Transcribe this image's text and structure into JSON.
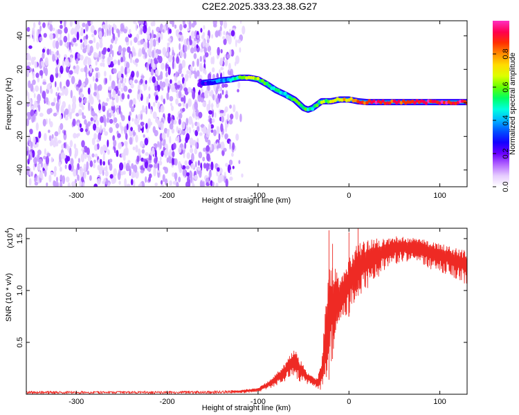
{
  "title": "C2E2.2025.333.23.38.G27",
  "colors": {
    "snr_line": "#ee2a24",
    "frame": "#000000",
    "scatter": "#7b2cf0",
    "colormap": [
      "#ffffff",
      "#e6ccff",
      "#b366ff",
      "#6a00ff",
      "#1400ff",
      "#0050ff",
      "#00b4ff",
      "#00ffe0",
      "#00ff64",
      "#64ff00",
      "#dcff00",
      "#ffdc00",
      "#ff8c00",
      "#ff3000",
      "#ff0050",
      "#ff30c0"
    ]
  },
  "chart_data": [
    {
      "type": "heatmap",
      "name": "spectrogram",
      "xlabel": "Height of straight line (km)",
      "ylabel": "Frequency (Hz)",
      "xlim": [
        -355,
        130
      ],
      "ylim": [
        -50,
        49
      ],
      "x_ticks": [
        -300,
        -200,
        -100,
        0,
        100
      ],
      "x_tick_labels": [
        "-300",
        "-200",
        "-100",
        "0",
        "100"
      ],
      "y_ticks": [
        -40,
        -20,
        0,
        20,
        40
      ],
      "y_tick_labels": [
        "-40",
        "-20",
        "0",
        "20",
        "40"
      ],
      "noise_region_x": [
        -355,
        -115
      ],
      "noise_fade_x": [
        -140,
        -115
      ],
      "signal_track": {
        "x": [
          -160,
          -150,
          -140,
          -130,
          -120,
          -110,
          -100,
          -90,
          -80,
          -70,
          -60,
          -50,
          -45,
          -40,
          -35,
          -30,
          -20,
          -10,
          0,
          10,
          20,
          40,
          60,
          80,
          100,
          130
        ],
        "freq": [
          12,
          12.5,
          13.5,
          14,
          15,
          15,
          14,
          11,
          7.5,
          5,
          2,
          -3,
          -4,
          -3,
          -1,
          1,
          1,
          2,
          2,
          1,
          0.5,
          0.5,
          0.5,
          0.5,
          0.5,
          0.5
        ],
        "amplitude": [
          0.2,
          0.3,
          0.35,
          0.45,
          0.6,
          0.65,
          0.6,
          0.55,
          0.5,
          0.45,
          0.55,
          0.6,
          0.5,
          0.5,
          0.55,
          0.6,
          0.65,
          0.7,
          0.75,
          0.85,
          0.9,
          0.9,
          0.9,
          0.92,
          0.92,
          0.92
        ]
      },
      "colorbar": {
        "label": "Normalized spectral amplitude",
        "range": [
          0,
          1
        ],
        "ticks": [
          0,
          0.2,
          0.4,
          0.6,
          0.8
        ],
        "tick_labels": [
          "0.0",
          "0.2",
          "0.4",
          "0.6",
          "0.8"
        ]
      }
    },
    {
      "type": "line",
      "name": "snr",
      "xlabel": "Height of straight line (km)",
      "ylabel": "SNR (10 * v/v)",
      "multiplier": "(x10",
      "multiplier_exp": "4",
      "multiplier_close": ")",
      "xlim": [
        -355,
        130
      ],
      "ylim": [
        0,
        1.6
      ],
      "x_ticks": [
        -300,
        -200,
        -100,
        0,
        100
      ],
      "x_tick_labels": [
        "-300",
        "-200",
        "-100",
        "0",
        "100"
      ],
      "y_ticks": [
        0.5,
        1.0,
        1.5
      ],
      "y_tick_labels": [
        "0.5",
        "1.0",
        "1.5"
      ],
      "envelope": {
        "x": [
          -355,
          -300,
          -250,
          -200,
          -150,
          -120,
          -100,
          -90,
          -80,
          -70,
          -60,
          -55,
          -50,
          -45,
          -40,
          -35,
          -30,
          -25,
          -20,
          -15,
          -10,
          -5,
          0,
          5,
          10,
          20,
          30,
          40,
          50,
          60,
          70,
          80,
          90,
          100,
          110,
          120,
          130
        ],
        "low": [
          0.005,
          0.005,
          0.005,
          0.005,
          0.006,
          0.01,
          0.02,
          0.04,
          0.08,
          0.12,
          0.18,
          0.12,
          0.1,
          0.1,
          0.08,
          0.05,
          0.03,
          0.05,
          0.2,
          0.55,
          0.7,
          0.72,
          0.75,
          0.85,
          0.95,
          1.0,
          1.1,
          1.2,
          1.25,
          1.28,
          1.28,
          1.25,
          1.2,
          1.18,
          1.15,
          1.1,
          1.05
        ],
        "high": [
          0.03,
          0.03,
          0.03,
          0.03,
          0.035,
          0.04,
          0.06,
          0.12,
          0.2,
          0.3,
          0.45,
          0.35,
          0.28,
          0.2,
          0.18,
          0.15,
          0.3,
          0.95,
          1.3,
          1.25,
          1.1,
          1.2,
          1.3,
          1.4,
          1.45,
          1.48,
          1.5,
          1.51,
          1.52,
          1.52,
          1.51,
          1.5,
          1.48,
          1.45,
          1.43,
          1.4,
          1.38
        ]
      }
    }
  ]
}
